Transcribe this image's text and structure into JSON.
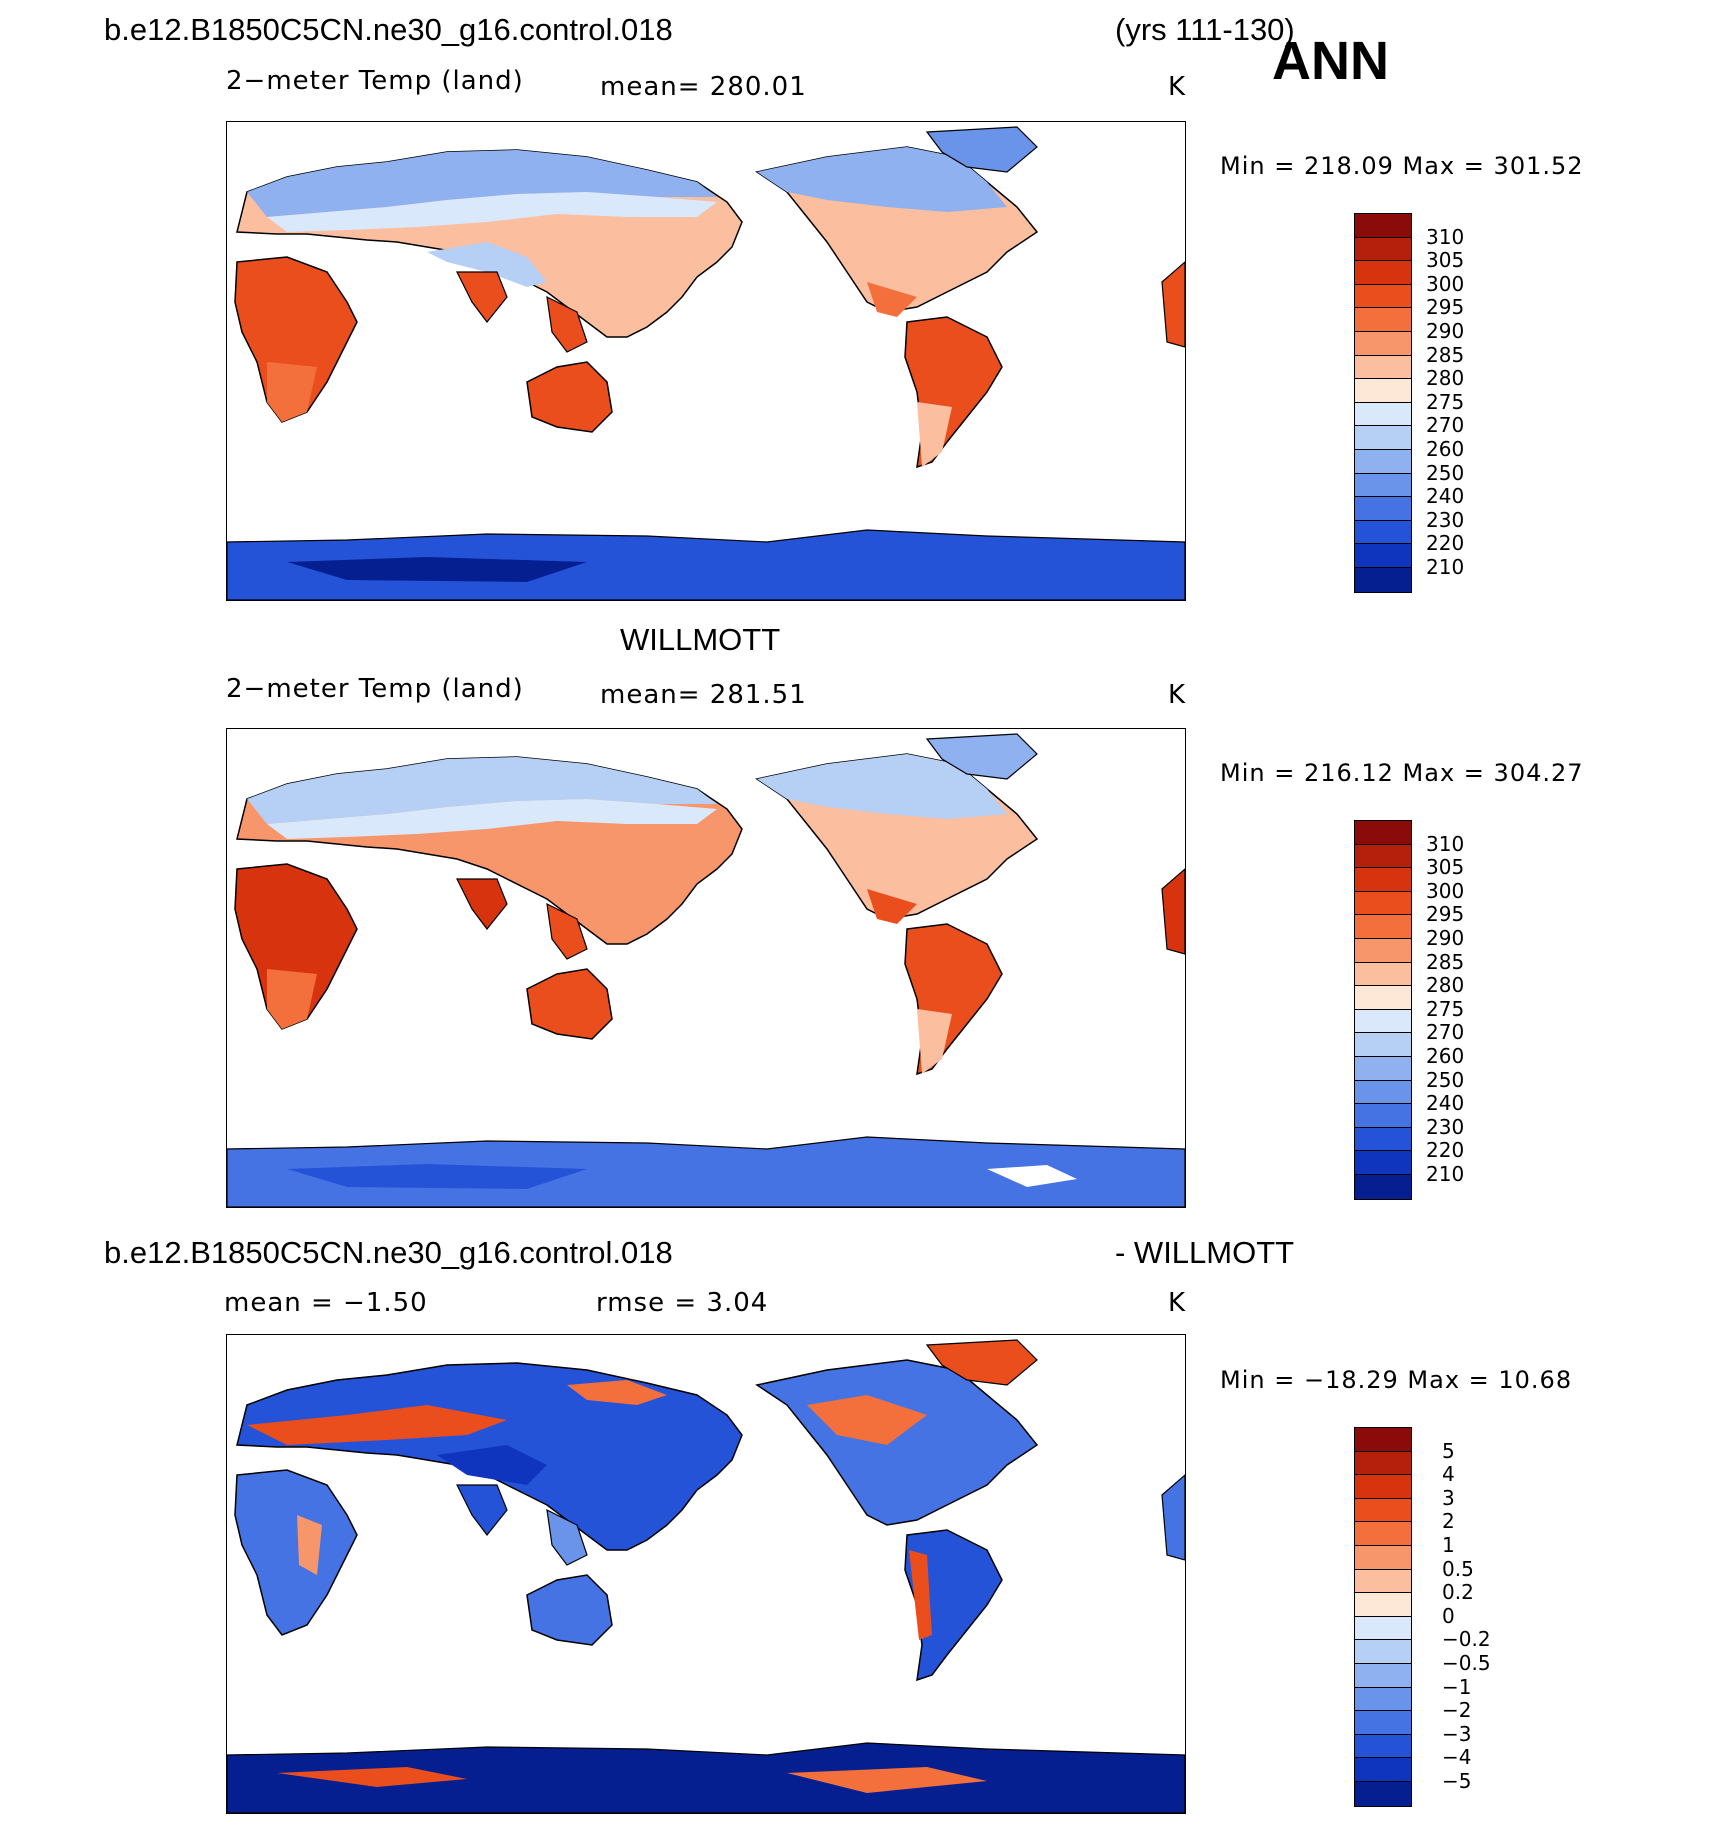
{
  "header": {
    "case_name": "b.e12.B1850C5CN.ne30_g16.control.018",
    "years": "(yrs 111-130)",
    "season": "ANN"
  },
  "panels": [
    {
      "title": "",
      "variable": "2−meter Temp (land)",
      "stat": "mean=  280.01",
      "units": "K",
      "minmax": "Min  =  218.09  Max  =  301.52",
      "colorbar": {
        "labels": [
          "310",
          "305",
          "300",
          "295",
          "290",
          "285",
          "280",
          "275",
          "270",
          "260",
          "250",
          "240",
          "230",
          "220",
          "210"
        ],
        "colors": [
          "#8b0a0a",
          "#b4200c",
          "#d8330f",
          "#ea4e1d",
          "#f3703d",
          "#f7956b",
          "#fbbe9f",
          "#fde7d6",
          "#d9e8fb",
          "#b6cff5",
          "#8fb1f0",
          "#6a93ea",
          "#4573e4",
          "#2453d8",
          "#0f35bf",
          "#061f90"
        ]
      }
    },
    {
      "title": "WILLMOTT",
      "variable": "2−meter Temp (land)",
      "stat": "mean=  281.51",
      "units": "K",
      "minmax": "Min  =  216.12  Max  =  304.27",
      "colorbar": {
        "labels": [
          "310",
          "305",
          "300",
          "295",
          "290",
          "285",
          "280",
          "275",
          "270",
          "260",
          "250",
          "240",
          "230",
          "220",
          "210"
        ],
        "colors": [
          "#8b0a0a",
          "#b4200c",
          "#d8330f",
          "#ea4e1d",
          "#f3703d",
          "#f7956b",
          "#fbbe9f",
          "#fde7d6",
          "#d9e8fb",
          "#b6cff5",
          "#8fb1f0",
          "#6a93ea",
          "#4573e4",
          "#2453d8",
          "#0f35bf",
          "#061f90"
        ]
      }
    },
    {
      "title_left": "b.e12.B1850C5CN.ne30_g16.control.018",
      "title_right": "- WILLMOTT",
      "stat_mean": "mean =    −1.50",
      "stat_rmse": "rmse =     3.04",
      "units": "K",
      "minmax": "Min  =  −18.29  Max  =    10.68",
      "colorbar": {
        "labels": [
          "5",
          "4",
          "3",
          "2",
          "1",
          "0.5",
          "0.2",
          "0",
          "−0.2",
          "−0.5",
          "−1",
          "−2",
          "−3",
          "−4",
          "−5"
        ],
        "colors": [
          "#8b0a0a",
          "#b4200c",
          "#d8330f",
          "#ea4e1d",
          "#f3703d",
          "#f7956b",
          "#fbbe9f",
          "#fde7d6",
          "#d9e8fb",
          "#b6cff5",
          "#8fb1f0",
          "#6a93ea",
          "#4573e4",
          "#2453d8",
          "#0f35bf",
          "#061f90"
        ]
      }
    }
  ]
}
